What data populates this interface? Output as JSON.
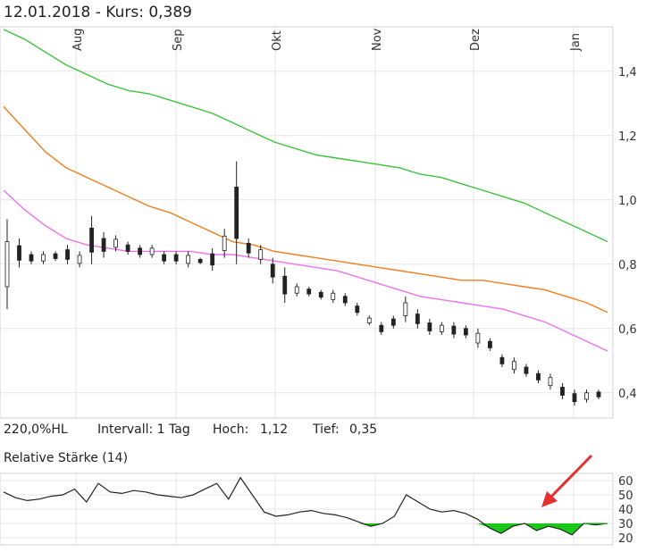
{
  "header": {
    "title": "12.01.2018  -  Kurs: 0,389"
  },
  "stats": {
    "range": "220,0%HL",
    "interval": "Intervall: 1 Tag",
    "high_label": "Hoch:",
    "high_value": "1,12",
    "low_label": "Tief:",
    "low_value": "0,35"
  },
  "rsi": {
    "title": "Relative Stärke (14)"
  },
  "colors": {
    "green_line": "#3cc23c",
    "orange_line": "#f07d1e",
    "magenta_line": "#f070f0",
    "candle": "#222222",
    "rsi_fill": "#19c819",
    "arrow": "#e53030",
    "grid": "#e6e6e6"
  },
  "chart_data": [
    {
      "type": "line",
      "title": "",
      "x_ticks": [
        "Aug",
        "Sep",
        "Okt",
        "Nov",
        "Dez",
        "Jan"
      ],
      "y_ticks": [
        "1,4",
        "1,2",
        "1,0",
        "0,8",
        "0,6",
        "0,4"
      ],
      "ylim": [
        0.33,
        1.53
      ],
      "grid": true,
      "series": [
        {
          "name": "",
          "color": "#3cc23c",
          "values": [
            1.53,
            1.5,
            1.46,
            1.42,
            1.39,
            1.36,
            1.34,
            1.33,
            1.31,
            1.29,
            1.27,
            1.24,
            1.21,
            1.18,
            1.16,
            1.14,
            1.13,
            1.12,
            1.11,
            1.1,
            1.08,
            1.07,
            1.05,
            1.03,
            1.01,
            0.99,
            0.96,
            0.93,
            0.9,
            0.87
          ]
        },
        {
          "name": "",
          "color": "#f07d1e",
          "values": [
            1.29,
            1.22,
            1.15,
            1.1,
            1.07,
            1.04,
            1.01,
            0.98,
            0.96,
            0.93,
            0.9,
            0.87,
            0.86,
            0.84,
            0.83,
            0.82,
            0.81,
            0.8,
            0.79,
            0.78,
            0.77,
            0.76,
            0.75,
            0.75,
            0.74,
            0.73,
            0.72,
            0.7,
            0.68,
            0.65
          ]
        },
        {
          "name": "",
          "color": "#f070f0",
          "values": [
            1.03,
            0.97,
            0.92,
            0.88,
            0.86,
            0.85,
            0.84,
            0.84,
            0.84,
            0.84,
            0.83,
            0.83,
            0.82,
            0.81,
            0.8,
            0.79,
            0.78,
            0.76,
            0.74,
            0.72,
            0.7,
            0.69,
            0.68,
            0.67,
            0.66,
            0.64,
            0.62,
            0.59,
            0.56,
            0.53
          ]
        }
      ],
      "candles": [
        [
          0.66,
          0.94
        ],
        [
          0.79,
          0.88
        ],
        [
          0.8,
          0.84
        ],
        [
          0.8,
          0.84
        ],
        [
          0.81,
          0.84
        ],
        [
          0.8,
          0.86
        ],
        [
          0.79,
          0.84
        ],
        [
          0.8,
          0.95
        ],
        [
          0.82,
          0.9
        ],
        [
          0.84,
          0.89
        ],
        [
          0.83,
          0.87
        ],
        [
          0.82,
          0.86
        ],
        [
          0.82,
          0.86
        ],
        [
          0.8,
          0.84
        ],
        [
          0.8,
          0.84
        ],
        [
          0.79,
          0.84
        ],
        [
          0.8,
          0.82
        ],
        [
          0.78,
          0.85
        ],
        [
          0.82,
          0.91
        ],
        [
          0.8,
          1.12
        ],
        [
          0.82,
          0.88
        ],
        [
          0.8,
          0.86
        ],
        [
          0.74,
          0.82
        ],
        [
          0.68,
          0.79
        ],
        [
          0.7,
          0.74
        ],
        [
          0.7,
          0.73
        ],
        [
          0.69,
          0.72
        ],
        [
          0.68,
          0.72
        ],
        [
          0.67,
          0.71
        ],
        [
          0.64,
          0.68
        ],
        [
          0.61,
          0.64
        ],
        [
          0.58,
          0.62
        ],
        [
          0.6,
          0.64
        ],
        [
          0.62,
          0.7
        ],
        [
          0.6,
          0.66
        ],
        [
          0.58,
          0.63
        ],
        [
          0.58,
          0.62
        ],
        [
          0.57,
          0.62
        ],
        [
          0.57,
          0.61
        ],
        [
          0.54,
          0.6
        ],
        [
          0.53,
          0.57
        ],
        [
          0.48,
          0.52
        ],
        [
          0.46,
          0.51
        ],
        [
          0.45,
          0.49
        ],
        [
          0.43,
          0.47
        ],
        [
          0.41,
          0.46
        ],
        [
          0.38,
          0.43
        ],
        [
          0.36,
          0.41
        ],
        [
          0.37,
          0.41
        ],
        [
          0.38,
          0.41
        ]
      ]
    },
    {
      "type": "area",
      "title": "Relative Stärke (14)",
      "y_ticks": [
        "60",
        "50",
        "40",
        "30",
        "20"
      ],
      "ylim": [
        15,
        65
      ],
      "threshold": 30,
      "values": [
        52,
        48,
        46,
        47,
        49,
        50,
        54,
        45,
        58,
        52,
        51,
        53,
        52,
        50,
        49,
        48,
        50,
        54,
        58,
        47,
        62,
        50,
        38,
        35,
        36,
        38,
        39,
        37,
        36,
        34,
        31,
        28,
        30,
        35,
        50,
        45,
        40,
        38,
        39,
        37,
        33,
        27,
        23,
        28,
        30,
        25,
        28,
        26,
        22,
        30,
        29,
        30
      ]
    }
  ]
}
